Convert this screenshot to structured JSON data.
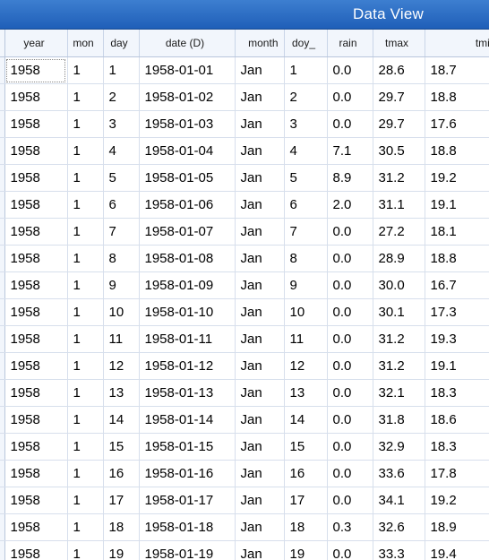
{
  "window": {
    "title": "Data View"
  },
  "columns": [
    "year",
    "mon",
    "day",
    "date (D)",
    "month",
    "doy_",
    "rain",
    "tmax",
    "tmin"
  ],
  "rows": [
    [
      "1958",
      "1",
      "1",
      "1958-01-01",
      "Jan",
      "1",
      "0.0",
      "28.6",
      "18.7"
    ],
    [
      "1958",
      "1",
      "2",
      "1958-01-02",
      "Jan",
      "2",
      "0.0",
      "29.7",
      "18.8"
    ],
    [
      "1958",
      "1",
      "3",
      "1958-01-03",
      "Jan",
      "3",
      "0.0",
      "29.7",
      "17.6"
    ],
    [
      "1958",
      "1",
      "4",
      "1958-01-04",
      "Jan",
      "4",
      "7.1",
      "30.5",
      "18.8"
    ],
    [
      "1958",
      "1",
      "5",
      "1958-01-05",
      "Jan",
      "5",
      "8.9",
      "31.2",
      "19.2"
    ],
    [
      "1958",
      "1",
      "6",
      "1958-01-06",
      "Jan",
      "6",
      "2.0",
      "31.1",
      "19.1"
    ],
    [
      "1958",
      "1",
      "7",
      "1958-01-07",
      "Jan",
      "7",
      "0.0",
      "27.2",
      "18.1"
    ],
    [
      "1958",
      "1",
      "8",
      "1958-01-08",
      "Jan",
      "8",
      "0.0",
      "28.9",
      "18.8"
    ],
    [
      "1958",
      "1",
      "9",
      "1958-01-09",
      "Jan",
      "9",
      "0.0",
      "30.0",
      "16.7"
    ],
    [
      "1958",
      "1",
      "10",
      "1958-01-10",
      "Jan",
      "10",
      "0.0",
      "30.1",
      "17.3"
    ],
    [
      "1958",
      "1",
      "11",
      "1958-01-11",
      "Jan",
      "11",
      "0.0",
      "31.2",
      "19.3"
    ],
    [
      "1958",
      "1",
      "12",
      "1958-01-12",
      "Jan",
      "12",
      "0.0",
      "31.2",
      "19.1"
    ],
    [
      "1958",
      "1",
      "13",
      "1958-01-13",
      "Jan",
      "13",
      "0.0",
      "32.1",
      "18.3"
    ],
    [
      "1958",
      "1",
      "14",
      "1958-01-14",
      "Jan",
      "14",
      "0.0",
      "31.8",
      "18.6"
    ],
    [
      "1958",
      "1",
      "15",
      "1958-01-15",
      "Jan",
      "15",
      "0.0",
      "32.9",
      "18.3"
    ],
    [
      "1958",
      "1",
      "16",
      "1958-01-16",
      "Jan",
      "16",
      "0.0",
      "33.6",
      "17.8"
    ],
    [
      "1958",
      "1",
      "17",
      "1958-01-17",
      "Jan",
      "17",
      "0.0",
      "34.1",
      "19.2"
    ],
    [
      "1958",
      "1",
      "18",
      "1958-01-18",
      "Jan",
      "18",
      "0.3",
      "32.6",
      "18.9"
    ],
    [
      "1958",
      "1",
      "19",
      "1958-01-19",
      "Jan",
      "19",
      "0.0",
      "33.3",
      "19.4"
    ]
  ]
}
